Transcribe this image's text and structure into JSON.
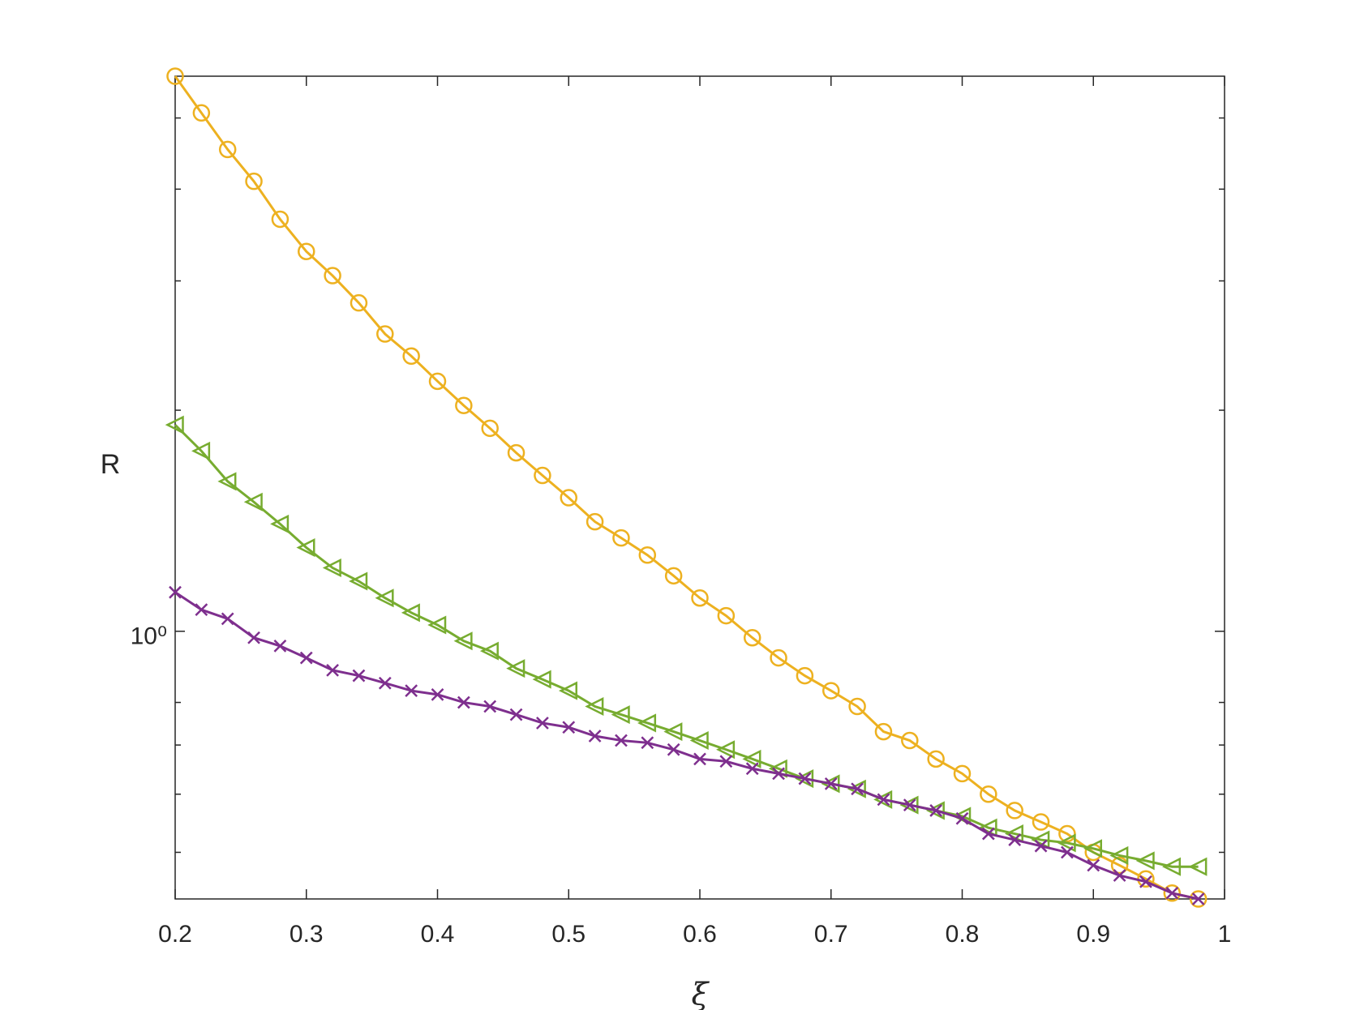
{
  "chart_data": {
    "type": "line",
    "log_y": true,
    "xlabel": "ξ",
    "ylabel": "R",
    "x": [
      0.2,
      0.22,
      0.24,
      0.26,
      0.28,
      0.3,
      0.32,
      0.34,
      0.36,
      0.38,
      0.4,
      0.42,
      0.44,
      0.46,
      0.48,
      0.5,
      0.52,
      0.54,
      0.56,
      0.58,
      0.6,
      0.62,
      0.64,
      0.66,
      0.68,
      0.7,
      0.72,
      0.74,
      0.76,
      0.78,
      0.8,
      0.82,
      0.84,
      0.86,
      0.88,
      0.9,
      0.92,
      0.94,
      0.96,
      0.98
    ],
    "series": [
      {
        "color": "#edb120",
        "marker": "circle",
        "values": [
          5.7,
          5.08,
          4.53,
          4.1,
          3.64,
          3.29,
          3.05,
          2.8,
          2.54,
          2.37,
          2.19,
          2.03,
          1.89,
          1.75,
          1.63,
          1.52,
          1.41,
          1.34,
          1.27,
          1.19,
          1.11,
          1.05,
          0.98,
          0.92,
          0.87,
          0.83,
          0.79,
          0.73,
          0.71,
          0.67,
          0.64,
          0.6,
          0.57,
          0.55,
          0.53,
          0.5,
          0.48,
          0.46,
          0.44,
          0.432
        ]
      },
      {
        "color": "#77ac30",
        "marker": "triangle-left",
        "values": [
          1.91,
          1.76,
          1.6,
          1.5,
          1.4,
          1.3,
          1.22,
          1.17,
          1.11,
          1.06,
          1.02,
          0.97,
          0.94,
          0.89,
          0.86,
          0.83,
          0.79,
          0.77,
          0.75,
          0.73,
          0.71,
          0.69,
          0.67,
          0.65,
          0.63,
          0.62,
          0.61,
          0.59,
          0.58,
          0.57,
          0.56,
          0.54,
          0.53,
          0.52,
          0.515,
          0.506,
          0.495,
          0.487,
          0.478,
          0.478
        ]
      },
      {
        "color": "#7e2f8e",
        "marker": "x",
        "values": [
          1.13,
          1.07,
          1.04,
          0.98,
          0.955,
          0.92,
          0.885,
          0.87,
          0.85,
          0.83,
          0.82,
          0.8,
          0.79,
          0.77,
          0.75,
          0.74,
          0.72,
          0.71,
          0.705,
          0.69,
          0.67,
          0.665,
          0.65,
          0.64,
          0.63,
          0.62,
          0.61,
          0.59,
          0.58,
          0.57,
          0.556,
          0.53,
          0.52,
          0.51,
          0.5,
          0.48,
          0.465,
          0.456,
          0.44,
          0.432
        ]
      }
    ],
    "xlim": [
      0.2,
      1
    ],
    "xticks": [
      0.2,
      0.3,
      0.4,
      0.5,
      0.6,
      0.7,
      0.8,
      0.9,
      1
    ],
    "ylim": [
      0.432,
      5.7
    ],
    "yticks": [
      {
        "value": 1,
        "label": "10⁰"
      }
    ],
    "minor_yticks": [
      0.5,
      0.6,
      0.7,
      0.8,
      2,
      3,
      4,
      5
    ],
    "grid": false
  }
}
